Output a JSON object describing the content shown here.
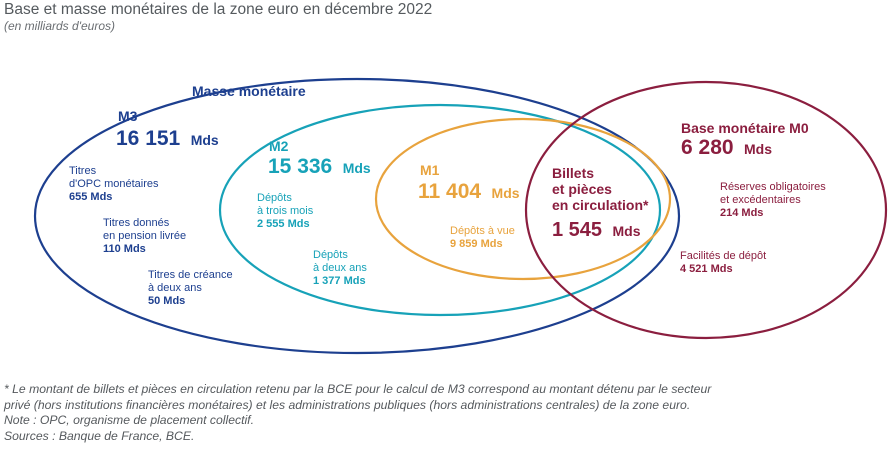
{
  "title": "Base et masse monétaires de la zone euro en décembre 2022",
  "subtitle": "(en milliards d'euros)",
  "colors": {
    "masse": "#1d3f8f",
    "m2": "#17a2b8",
    "m1": "#e8a33d",
    "base": "#8b1e3f"
  },
  "masse_monetaire": {
    "label": "Masse monétaire",
    "m3": {
      "label": "M3",
      "value": "16 151",
      "unit": "Mds",
      "items": [
        {
          "lines": [
            "Titres",
            "d'OPC monétaires"
          ],
          "amount": "655 Mds"
        },
        {
          "lines": [
            "Titres donnés",
            "en pension livrée"
          ],
          "amount": "110 Mds"
        },
        {
          "lines": [
            "Titres de créance",
            "à deux ans"
          ],
          "amount": "50 Mds"
        }
      ]
    },
    "m2": {
      "label": "M2",
      "value": "15 336",
      "unit": "Mds",
      "items": [
        {
          "lines": [
            "Dépôts",
            "à trois mois"
          ],
          "amount": "2 555 Mds"
        },
        {
          "lines": [
            "Dépôts",
            "à deux ans"
          ],
          "amount": "1 377 Mds"
        }
      ]
    },
    "m1": {
      "label": "M1",
      "value": "11 404",
      "unit": "Mds",
      "items": [
        {
          "lines": [
            "Dépôts à vue"
          ],
          "amount": "9 859 Mds"
        }
      ]
    }
  },
  "billets": {
    "lines": [
      "Billets",
      "et pièces",
      "en circulation*"
    ],
    "value": "1 545",
    "unit": "Mds"
  },
  "base_monetaire": {
    "label": "Base monétaire M0",
    "value": "6 280",
    "unit": "Mds",
    "items": [
      {
        "lines": [
          "Réserves obligatoires",
          "et excédentaires"
        ],
        "amount": "214 Mds"
      },
      {
        "lines": [
          "Facilités de dépôt"
        ],
        "amount": "4 521 Mds"
      }
    ]
  },
  "notes": [
    "* Le montant de billets et pièces en circulation retenu par la BCE pour le calcul de M3 correspond au montant détenu par le secteur",
    "privé (hors institutions financières monétaires) et les administrations publiques (hors administrations centrales) de la zone euro.",
    "Note : OPC, organisme de placement collectif.",
    "Sources : Banque de France, BCE."
  ]
}
